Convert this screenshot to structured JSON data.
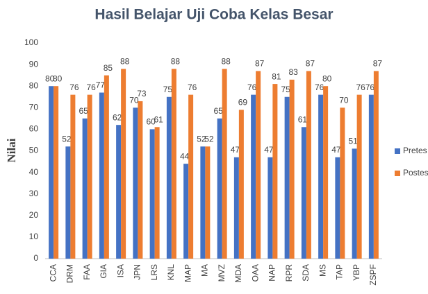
{
  "chart_data": {
    "type": "bar",
    "title": "Hasil Belajar Uji Coba Kelas Besar",
    "y_label": "Nilai",
    "categories": [
      "CCA",
      "DRM",
      "FAA",
      "GIA",
      "ISA",
      "JPN",
      "LRS",
      "KNL",
      "MAP",
      "MA",
      "MVZ",
      "MDA",
      "OAA",
      "NAP",
      "RPR",
      "SDA",
      "MS",
      "TAP",
      "YBP",
      "ZSPF"
    ],
    "series": [
      {
        "name": "Pretes",
        "color": "#4472c4",
        "values": [
          80,
          52,
          65,
          77,
          62,
          70,
          60,
          75,
          44,
          52,
          65,
          47,
          76,
          47,
          75,
          61,
          76,
          47,
          51,
          76
        ]
      },
      {
        "name": "Postes",
        "color": "#ed7d31",
        "values": [
          80,
          76,
          76,
          85,
          88,
          73,
          61,
          88,
          76,
          52,
          88,
          69,
          87,
          81,
          83,
          87,
          80,
          70,
          76,
          87
        ]
      }
    ],
    "ylim": [
      0,
      100
    ],
    "yticks": [
      0,
      10,
      20,
      30,
      40,
      50,
      60,
      70,
      80,
      90,
      100
    ],
    "grid": false,
    "legend": "right"
  }
}
